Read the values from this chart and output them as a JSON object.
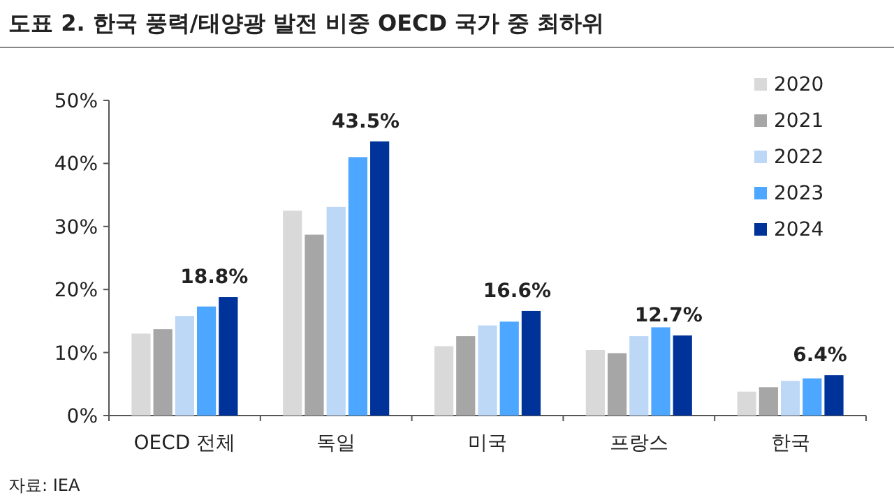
{
  "chart_data": {
    "type": "bar",
    "title": "도표 2. 한국 풍력/태양광 발전 비중 OECD 국가 중 최하위",
    "categories": [
      "OECD 전체",
      "독일",
      "미국",
      "프랑스",
      "한국"
    ],
    "series": [
      {
        "name": "2020",
        "color": "#d9d9d9",
        "values": [
          13.0,
          32.5,
          11.0,
          10.4,
          3.8
        ]
      },
      {
        "name": "2021",
        "color": "#a6a6a6",
        "values": [
          13.7,
          28.7,
          12.6,
          9.9,
          4.5
        ]
      },
      {
        "name": "2022",
        "color": "#bdd7f7",
        "values": [
          15.8,
          33.1,
          14.3,
          12.6,
          5.5
        ]
      },
      {
        "name": "2023",
        "color": "#4da6ff",
        "values": [
          17.3,
          41.0,
          14.9,
          14.0,
          5.9
        ]
      },
      {
        "name": "2024",
        "color": "#003399",
        "values": [
          18.8,
          43.5,
          16.6,
          12.7,
          6.4
        ],
        "value_labels": [
          "18.8%",
          "43.5%",
          "16.6%",
          "12.7%",
          "6.4%"
        ]
      }
    ],
    "ylim": [
      0,
      50
    ],
    "yticks": [
      {
        "value": 0,
        "label": "0%"
      },
      {
        "value": 10,
        "label": "10%"
      },
      {
        "value": 20,
        "label": "20%"
      },
      {
        "value": 30,
        "label": "30%"
      },
      {
        "value": 40,
        "label": "40%"
      },
      {
        "value": 50,
        "label": "50%"
      }
    ],
    "grid": false,
    "legend": "top right",
    "annotations": [
      "자료: IEA"
    ]
  }
}
